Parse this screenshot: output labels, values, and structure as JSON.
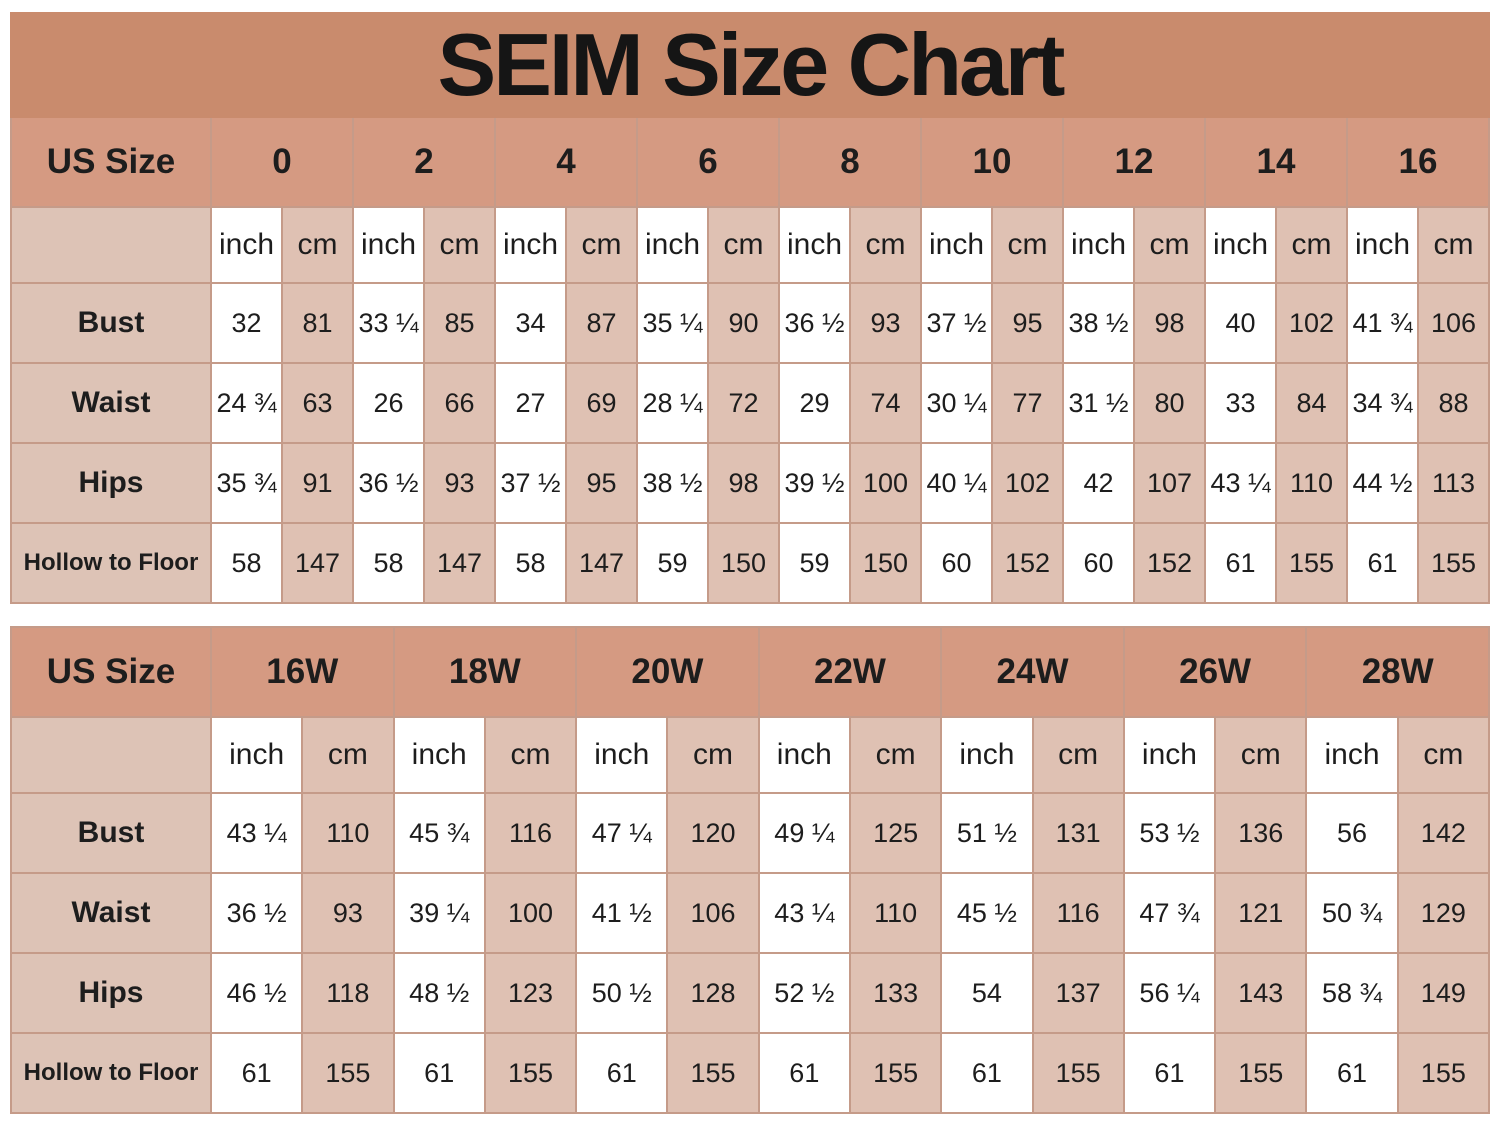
{
  "title": "SEIM Size Chart",
  "colors": {
    "title_bar": "#c98b6d",
    "header_row": "#d59a82",
    "cm_column": "#dfc1b3",
    "label_column": "#ddc3b6",
    "inch_column": "#ffffff",
    "grid_line": "#c59b89",
    "text": "#1d1d1d"
  },
  "chart_data": [
    {
      "type": "table",
      "name": "standard-sizes",
      "row_header": "US Size",
      "units": [
        "inch",
        "cm"
      ],
      "sizes": [
        "0",
        "2",
        "4",
        "6",
        "8",
        "10",
        "12",
        "14",
        "16"
      ],
      "rows": [
        {
          "label": "Bust",
          "inch": [
            "32",
            "33 ¼",
            "34",
            "35 ¼",
            "36 ½",
            "37 ½",
            "38 ½",
            "40",
            "41 ¾"
          ],
          "cm": [
            "81",
            "85",
            "87",
            "90",
            "93",
            "95",
            "98",
            "102",
            "106"
          ]
        },
        {
          "label": "Waist",
          "inch": [
            "24 ¾",
            "26",
            "27",
            "28 ¼",
            "29",
            "30 ¼",
            "31 ½",
            "33",
            "34 ¾"
          ],
          "cm": [
            "63",
            "66",
            "69",
            "72",
            "74",
            "77",
            "80",
            "84",
            "88"
          ]
        },
        {
          "label": "Hips",
          "inch": [
            "35 ¾",
            "36 ½",
            "37 ½",
            "38 ½",
            "39 ½",
            "40 ¼",
            "42",
            "43 ¼",
            "44 ½"
          ],
          "cm": [
            "91",
            "93",
            "95",
            "98",
            "100",
            "102",
            "107",
            "110",
            "113"
          ]
        },
        {
          "label": "Hollow to Floor",
          "inch": [
            "58",
            "58",
            "58",
            "59",
            "59",
            "60",
            "60",
            "61",
            "61"
          ],
          "cm": [
            "147",
            "147",
            "147",
            "150",
            "150",
            "152",
            "152",
            "155",
            "155"
          ]
        }
      ]
    },
    {
      "type": "table",
      "name": "plus-sizes",
      "row_header": "US Size",
      "units": [
        "inch",
        "cm"
      ],
      "sizes": [
        "16W",
        "18W",
        "20W",
        "22W",
        "24W",
        "26W",
        "28W"
      ],
      "rows": [
        {
          "label": "Bust",
          "inch": [
            "43 ¼",
            "45 ¾",
            "47 ¼",
            "49 ¼",
            "51 ½",
            "53 ½",
            "56"
          ],
          "cm": [
            "110",
            "116",
            "120",
            "125",
            "131",
            "136",
            "142"
          ]
        },
        {
          "label": "Waist",
          "inch": [
            "36 ½",
            "39 ¼",
            "41 ½",
            "43 ¼",
            "45 ½",
            "47 ¾",
            "50 ¾"
          ],
          "cm": [
            "93",
            "100",
            "106",
            "110",
            "116",
            "121",
            "129"
          ]
        },
        {
          "label": "Hips",
          "inch": [
            "46 ½",
            "48 ½",
            "50 ½",
            "52 ½",
            "54",
            "56 ¼",
            "58 ¾"
          ],
          "cm": [
            "118",
            "123",
            "128",
            "133",
            "137",
            "143",
            "149"
          ]
        },
        {
          "label": "Hollow to Floor",
          "inch": [
            "61",
            "61",
            "61",
            "61",
            "61",
            "61",
            "61"
          ],
          "cm": [
            "155",
            "155",
            "155",
            "155",
            "155",
            "155",
            "155"
          ]
        }
      ]
    }
  ]
}
